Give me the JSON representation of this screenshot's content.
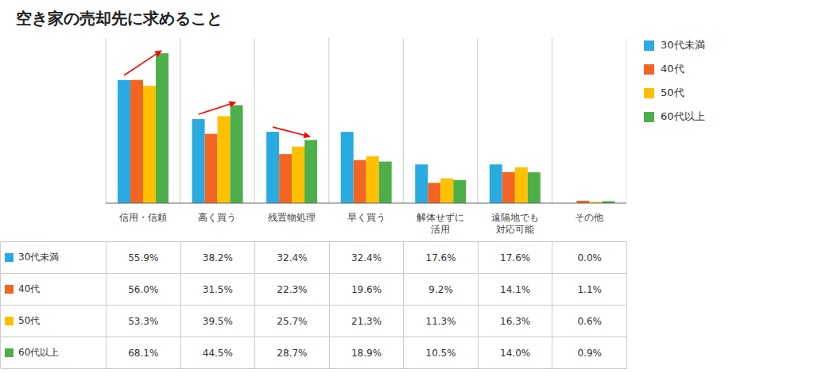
{
  "chart_data": {
    "type": "bar",
    "title": "空き家の売却先に求めること",
    "categories": [
      "信用・信頼",
      "高く買う",
      "残置物処理",
      "早く買う",
      "解体せずに\n活用",
      "遠隔地でも\n対応可能",
      "その他"
    ],
    "series": [
      {
        "name": "30代未満",
        "color": "#29ABE2",
        "values": [
          55.9,
          38.2,
          32.4,
          32.4,
          17.6,
          17.6,
          0.0
        ]
      },
      {
        "name": "40代",
        "color": "#F26522",
        "values": [
          56.0,
          31.5,
          22.3,
          19.6,
          9.2,
          14.1,
          1.1
        ]
      },
      {
        "name": "50代",
        "color": "#FFC000",
        "values": [
          53.3,
          39.5,
          25.7,
          21.3,
          11.3,
          16.3,
          0.6
        ]
      },
      {
        "name": "60代以上",
        "color": "#4DAF4A",
        "values": [
          68.1,
          44.5,
          28.7,
          18.9,
          10.5,
          14.0,
          0.9
        ]
      }
    ],
    "ylim": [
      0,
      75
    ],
    "tick_labels": "x",
    "grid": true,
    "legend": "right",
    "arrows": [
      {
        "category": "信用・信頼",
        "from": "30代未満",
        "to": "60代以上"
      },
      {
        "category": "高く買う",
        "from": "30代未満",
        "to": "60代以上"
      },
      {
        "category": "残置物処理",
        "from": "30代未満",
        "to": "60代以上"
      }
    ],
    "table": [
      [
        "30代未満",
        "55.9%",
        "38.2%",
        "32.4%",
        "32.4%",
        "17.6%",
        "17.6%",
        "0.0%"
      ],
      [
        "40代",
        "56.0%",
        "31.5%",
        "22.3%",
        "19.6%",
        "9.2%",
        "14.1%",
        "1.1%"
      ],
      [
        "50代",
        "53.3%",
        "39.5%",
        "25.7%",
        "21.3%",
        "11.3%",
        "16.3%",
        "0.6%"
      ],
      [
        "60代以上",
        "68.1%",
        "44.5%",
        "28.7%",
        "18.9%",
        "10.5%",
        "14.0%",
        "0.9%"
      ]
    ]
  }
}
